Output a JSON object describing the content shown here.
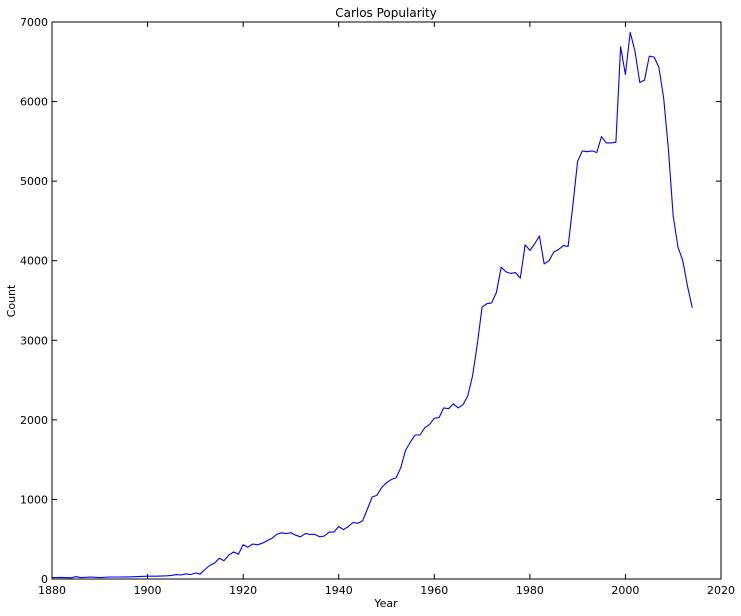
{
  "chart_data": {
    "type": "line",
    "title": "Carlos Popularity",
    "xlabel": "Year",
    "ylabel": "Count",
    "xlim": [
      1880,
      2020
    ],
    "ylim": [
      0,
      7000
    ],
    "xticks": [
      "1880",
      "1900",
      "1920",
      "1940",
      "1960",
      "1980",
      "2000",
      "2020"
    ],
    "yticks": [
      "0",
      "1000",
      "2000",
      "3000",
      "4000",
      "5000",
      "6000",
      "7000"
    ],
    "grid": false,
    "line_color": "#0000ff",
    "series": [
      {
        "x": [
          1880,
          1882,
          1884,
          1885,
          1886,
          1888,
          1890,
          1892,
          1894,
          1896,
          1898,
          1900,
          1902,
          1904,
          1905,
          1906,
          1907,
          1908,
          1909,
          1910,
          1911,
          1912,
          1913,
          1914,
          1915,
          1916,
          1917,
          1918,
          1919,
          1920,
          1921,
          1922,
          1923,
          1924,
          1925,
          1926,
          1927,
          1928,
          1929,
          1930,
          1931,
          1932,
          1933,
          1934,
          1935,
          1936,
          1937,
          1938,
          1939,
          1940,
          1941,
          1942,
          1943,
          1944,
          1945,
          1946,
          1947,
          1948,
          1949,
          1950,
          1951,
          1952,
          1953,
          1954,
          1955,
          1956,
          1957,
          1958,
          1959,
          1960,
          1961,
          1962,
          1963,
          1964,
          1965,
          1966,
          1967,
          1968,
          1969,
          1970,
          1971,
          1972,
          1973,
          1974,
          1975,
          1976,
          1977,
          1978,
          1979,
          1980,
          1981,
          1982,
          1983,
          1984,
          1985,
          1986,
          1987,
          1988,
          1989,
          1990,
          1991,
          1992,
          1993,
          1994,
          1995,
          1996,
          1997,
          1998,
          1999,
          2000,
          2001,
          2002,
          2003,
          2004,
          2005,
          2006,
          2007,
          2008,
          2009,
          2010,
          2011,
          2012,
          2013,
          2014
        ],
        "y": [
          18,
          20,
          15,
          30,
          18,
          25,
          18,
          25,
          25,
          27,
          30,
          35,
          35,
          40,
          45,
          55,
          50,
          65,
          55,
          75,
          60,
          120,
          170,
          200,
          260,
          230,
          300,
          340,
          310,
          430,
          400,
          440,
          430,
          450,
          480,
          510,
          560,
          580,
          570,
          580,
          550,
          530,
          570,
          560,
          560,
          530,
          540,
          590,
          590,
          660,
          620,
          660,
          710,
          700,
          730,
          880,
          1030,
          1050,
          1150,
          1210,
          1250,
          1270,
          1400,
          1620,
          1720,
          1810,
          1810,
          1900,
          1940,
          2020,
          2030,
          2150,
          2140,
          2200,
          2150,
          2190,
          2300,
          2550,
          2950,
          3420,
          3460,
          3470,
          3600,
          3920,
          3860,
          3840,
          3850,
          3780,
          4200,
          4130,
          4210,
          4310,
          3960,
          4000,
          4110,
          4140,
          4190,
          4180,
          4700,
          5250,
          5380,
          5370,
          5380,
          5360,
          5560,
          5480,
          5480,
          5490,
          6690,
          6340,
          6870,
          6630,
          6240,
          6270,
          6570,
          6560,
          6430,
          6040,
          5400,
          4560,
          4170,
          4000,
          3680,
          3410
        ]
      }
    ]
  }
}
